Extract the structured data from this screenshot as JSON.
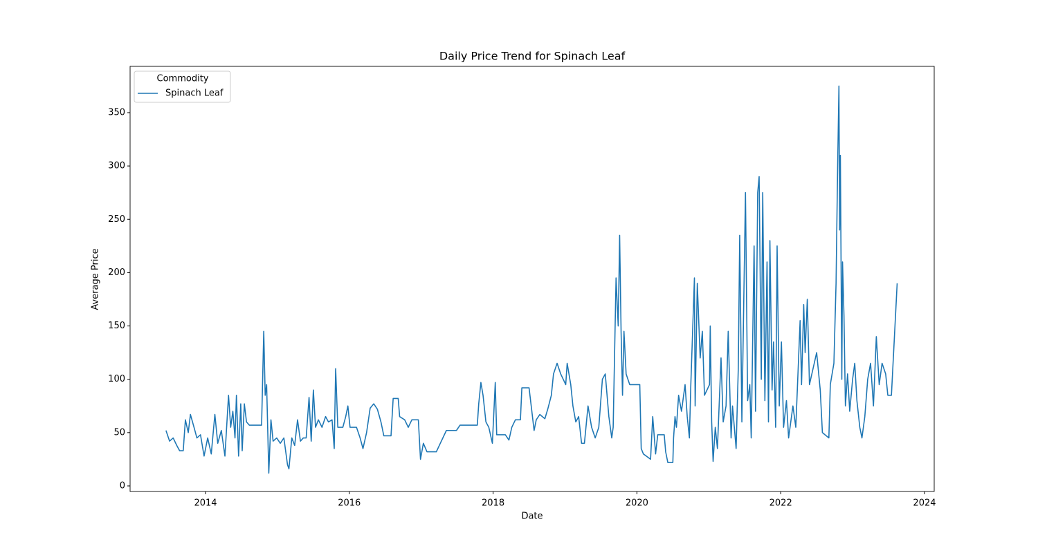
{
  "chart_data": {
    "type": "line",
    "title": "Daily Price Trend for Spinach Leaf",
    "xlabel": "Date",
    "ylabel": "Average Price",
    "legend_title": "Commodity",
    "legend": "upper left",
    "x": [
      2013.45,
      2013.5,
      2013.55,
      2013.6,
      2013.64,
      2013.69,
      2013.72,
      2013.76,
      2013.79,
      2013.84,
      2013.88,
      2013.93,
      2013.98,
      2014.03,
      2014.08,
      2014.13,
      2014.17,
      2014.22,
      2014.27,
      2014.32,
      2014.35,
      2014.38,
      2014.41,
      2014.43,
      2014.46,
      2014.49,
      2014.51,
      2014.54,
      2014.57,
      2014.61,
      2014.78,
      2014.81,
      2014.83,
      2014.85,
      2014.88,
      2014.91,
      2014.94,
      2014.99,
      2015.04,
      2015.09,
      2015.14,
      2015.16,
      2015.2,
      2015.24,
      2015.28,
      2015.32,
      2015.36,
      2015.4,
      2015.44,
      2015.47,
      2015.5,
      2015.53,
      2015.57,
      2015.62,
      2015.67,
      2015.71,
      2015.76,
      2015.79,
      2015.81,
      2015.84,
      2015.91,
      2015.95,
      2015.98,
      2016.01,
      2016.1,
      2016.15,
      2016.19,
      2016.24,
      2016.29,
      2016.34,
      2016.39,
      2016.44,
      2016.48,
      2016.58,
      2016.61,
      2016.68,
      2016.7,
      2016.77,
      2016.82,
      2016.87,
      2016.96,
      2016.99,
      2017.03,
      2017.08,
      2017.21,
      2017.35,
      2017.49,
      2017.54,
      2017.78,
      2017.8,
      2017.83,
      2017.86,
      2017.9,
      2017.94,
      2017.99,
      2018.03,
      2018.05,
      2018.17,
      2018.22,
      2018.26,
      2018.31,
      2018.38,
      2018.4,
      2018.5,
      2018.53,
      2018.57,
      2018.6,
      2018.65,
      2018.72,
      2018.76,
      2018.81,
      2018.84,
      2018.89,
      2018.94,
      2019.01,
      2019.03,
      2019.08,
      2019.11,
      2019.15,
      2019.19,
      2019.23,
      2019.27,
      2019.32,
      2019.37,
      2019.42,
      2019.47,
      2019.52,
      2019.56,
      2019.61,
      2019.65,
      2019.67,
      2019.71,
      2019.74,
      2019.76,
      2019.78,
      2019.79,
      2019.8,
      2019.82,
      2019.85,
      2019.9,
      2020.04,
      2020.06,
      2020.09,
      2020.19,
      2020.22,
      2020.26,
      2020.29,
      2020.38,
      2020.4,
      2020.43,
      2020.5,
      2020.51,
      2020.53,
      2020.55,
      2020.58,
      2020.62,
      2020.67,
      2020.7,
      2020.73,
      2020.75,
      2020.8,
      2020.81,
      2020.84,
      2020.88,
      2020.91,
      2020.94,
      2021.01,
      2021.02,
      2021.04,
      2021.06,
      2021.09,
      2021.12,
      2021.17,
      2021.2,
      2021.24,
      2021.27,
      2021.31,
      2021.33,
      2021.38,
      2021.41,
      2021.43,
      2021.46,
      2021.51,
      2021.54,
      2021.57,
      2021.59,
      2021.63,
      2021.65,
      2021.68,
      2021.7,
      2021.73,
      2021.75,
      2021.78,
      2021.81,
      2021.83,
      2021.85,
      2021.88,
      2021.9,
      2021.93,
      2021.95,
      2021.98,
      2022.01,
      2022.04,
      2022.08,
      2022.11,
      2022.17,
      2022.21,
      2022.27,
      2022.29,
      2022.32,
      2022.34,
      2022.37,
      2022.4,
      2022.45,
      2022.5,
      2022.55,
      2022.58,
      2022.67,
      2022.69,
      2022.74,
      2022.77,
      2022.79,
      2022.81,
      2022.82,
      2022.83,
      2022.85,
      2022.86,
      2022.88,
      2022.9,
      2022.93,
      2022.96,
      2023.0,
      2023.03,
      2023.06,
      2023.1,
      2023.13,
      2023.17,
      2023.21,
      2023.25,
      2023.29,
      2023.33,
      2023.37,
      2023.41,
      2023.46,
      2023.49,
      2023.54,
      2023.62
    ],
    "series": [
      {
        "name": "Spinach Leaf",
        "color": "#1f77b4",
        "values": [
          52,
          42,
          45,
          38,
          33,
          33,
          62,
          50,
          67,
          55,
          45,
          48,
          28,
          45,
          30,
          67,
          40,
          52,
          28,
          85,
          55,
          70,
          45,
          85,
          28,
          77,
          33,
          77,
          60,
          57,
          57,
          145,
          85,
          95,
          12,
          62,
          42,
          45,
          40,
          45,
          20,
          16,
          45,
          38,
          62,
          42,
          45,
          45,
          83,
          42,
          90,
          55,
          62,
          55,
          65,
          60,
          62,
          35,
          110,
          55,
          55,
          65,
          75,
          55,
          55,
          45,
          35,
          50,
          73,
          77,
          72,
          60,
          47,
          47,
          82,
          82,
          65,
          62,
          55,
          62,
          62,
          25,
          40,
          32,
          32,
          52,
          52,
          57,
          57,
          77,
          97,
          85,
          60,
          55,
          40,
          97,
          48,
          48,
          43,
          55,
          62,
          62,
          92,
          92,
          75,
          52,
          62,
          67,
          63,
          72,
          85,
          105,
          115,
          105,
          95,
          115,
          95,
          75,
          60,
          65,
          40,
          40,
          75,
          55,
          45,
          55,
          100,
          105,
          65,
          45,
          55,
          195,
          150,
          235,
          145,
          115,
          85,
          145,
          105,
          95,
          95,
          35,
          30,
          25,
          65,
          30,
          48,
          48,
          32,
          22,
          22,
          45,
          65,
          55,
          85,
          70,
          95,
          65,
          45,
          95,
          195,
          75,
          190,
          120,
          145,
          85,
          95,
          150,
          60,
          23,
          55,
          35,
          120,
          60,
          75,
          145,
          45,
          75,
          35,
          110,
          235,
          60,
          275,
          80,
          95,
          45,
          225,
          70,
          275,
          290,
          100,
          275,
          80,
          210,
          60,
          230,
          90,
          135,
          55,
          225,
          75,
          135,
          55,
          80,
          45,
          75,
          55,
          155,
          95,
          170,
          125,
          175,
          95,
          110,
          125,
          90,
          50,
          45,
          95,
          115,
          190,
          290,
          375,
          240,
          310,
          100,
          210,
          160,
          75,
          105,
          70,
          100,
          115,
          80,
          55,
          45,
          65,
          100,
          115,
          75,
          140,
          95,
          115,
          105,
          85,
          85,
          190
        ]
      }
    ],
    "xlim": [
      2012.951,
      2024.135
    ],
    "xticks": [
      2014,
      2016,
      2018,
      2020,
      2022,
      2024
    ],
    "ylim": [
      -5.2,
      393.4
    ],
    "yticks": [
      0,
      50,
      100,
      150,
      200,
      250,
      300,
      350
    ]
  }
}
